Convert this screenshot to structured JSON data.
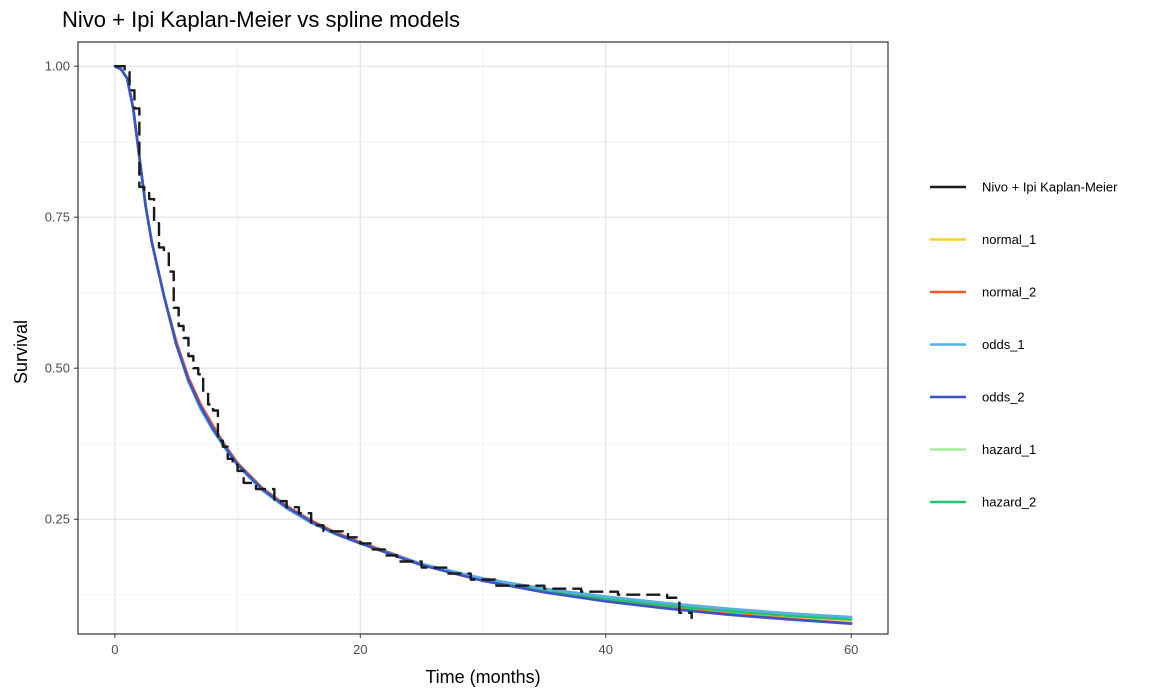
{
  "chart_data": {
    "type": "line",
    "title": "Nivo + Ipi Kaplan-Meier vs spline models",
    "xlabel": "Time (months)",
    "ylabel": "Survival",
    "xlim": [
      -3,
      63
    ],
    "ylim": [
      0.06,
      1.04
    ],
    "x_ticks": [
      0,
      20,
      40,
      60
    ],
    "x_tick_labels": [
      "0",
      "20",
      "40",
      "60"
    ],
    "y_ticks": [
      0.25,
      0.5,
      0.75,
      1.0
    ],
    "y_tick_labels": [
      "0.25",
      "0.50",
      "0.75",
      "1.00"
    ],
    "x_minor_ticks": [
      10,
      30,
      50
    ],
    "y_minor_ticks": [
      0.125,
      0.375,
      0.625,
      0.875
    ],
    "grid": true,
    "legend_position": "right",
    "series": [
      {
        "name": "Nivo + Ipi Kaplan-Meier",
        "color": "#1a1a1a",
        "dash": "long-dash",
        "x": [
          0,
          0.8,
          1.2,
          1.6,
          2.0,
          2.4,
          2.8,
          3.2,
          3.6,
          4.0,
          4.4,
          4.8,
          5.2,
          5.6,
          6.0,
          6.4,
          6.8,
          7.2,
          7.6,
          8.0,
          8.4,
          8.8,
          9.2,
          9.6,
          10.0,
          10.5,
          11.0,
          11.5,
          12.0,
          13.0,
          14.0,
          15.0,
          16.0,
          17.0,
          18.0,
          19.0,
          20.0,
          21.0,
          22.0,
          23.0,
          24.0,
          25.0,
          26.0,
          27.0,
          28.0,
          29.0,
          30.0,
          31.0,
          32.0,
          33.0,
          34.0,
          35.0,
          36.0,
          37.0,
          38.0,
          39.0,
          40.0,
          41.0,
          42.0,
          43.0,
          44.0,
          45.0,
          46.0,
          47.0
        ],
        "y": [
          1.0,
          0.99,
          0.96,
          0.93,
          0.8,
          0.79,
          0.78,
          0.74,
          0.7,
          0.69,
          0.66,
          0.6,
          0.57,
          0.55,
          0.52,
          0.5,
          0.49,
          0.46,
          0.44,
          0.43,
          0.38,
          0.37,
          0.35,
          0.34,
          0.33,
          0.31,
          0.31,
          0.3,
          0.3,
          0.28,
          0.27,
          0.26,
          0.24,
          0.23,
          0.23,
          0.22,
          0.21,
          0.2,
          0.19,
          0.18,
          0.18,
          0.17,
          0.17,
          0.16,
          0.16,
          0.15,
          0.15,
          0.14,
          0.14,
          0.14,
          0.14,
          0.135,
          0.135,
          0.135,
          0.13,
          0.13,
          0.13,
          0.125,
          0.125,
          0.125,
          0.125,
          0.12,
          0.095,
          0.085
        ]
      },
      {
        "name": "normal_1",
        "color": "#ffd21e",
        "dash": "solid",
        "x": [
          0,
          0.5,
          1,
          1.5,
          2,
          2.5,
          3,
          4,
          5,
          6,
          7,
          8,
          9,
          10,
          12,
          14,
          16,
          18,
          20,
          25,
          30,
          35,
          40,
          45,
          50,
          55,
          60
        ],
        "y": [
          1.0,
          0.995,
          0.98,
          0.93,
          0.85,
          0.77,
          0.71,
          0.62,
          0.54,
          0.48,
          0.435,
          0.4,
          0.37,
          0.34,
          0.3,
          0.27,
          0.245,
          0.225,
          0.21,
          0.175,
          0.15,
          0.132,
          0.118,
          0.106,
          0.097,
          0.089,
          0.083
        ]
      },
      {
        "name": "normal_2",
        "color": "#f05a28",
        "dash": "solid",
        "x": [
          0,
          0.5,
          1,
          1.5,
          2,
          2.5,
          3,
          4,
          5,
          6,
          7,
          8,
          9,
          10,
          12,
          14,
          16,
          18,
          20,
          25,
          30,
          35,
          40,
          45,
          50,
          55,
          60
        ],
        "y": [
          1.0,
          0.995,
          0.98,
          0.93,
          0.85,
          0.77,
          0.71,
          0.62,
          0.545,
          0.485,
          0.44,
          0.405,
          0.372,
          0.343,
          0.302,
          0.272,
          0.248,
          0.228,
          0.212,
          0.176,
          0.149,
          0.13,
          0.115,
          0.103,
          0.093,
          0.085,
          0.078
        ]
      },
      {
        "name": "odds_1",
        "color": "#5aaee6",
        "dash": "solid",
        "x": [
          0,
          0.5,
          1,
          1.5,
          2,
          2.5,
          3,
          4,
          5,
          6,
          7,
          8,
          9,
          10,
          12,
          14,
          16,
          18,
          20,
          25,
          30,
          35,
          40,
          45,
          50,
          55,
          60
        ],
        "y": [
          1.0,
          0.995,
          0.98,
          0.93,
          0.85,
          0.77,
          0.71,
          0.62,
          0.54,
          0.478,
          0.432,
          0.397,
          0.367,
          0.339,
          0.298,
          0.268,
          0.244,
          0.225,
          0.21,
          0.176,
          0.152,
          0.135,
          0.122,
          0.111,
          0.102,
          0.094,
          0.088
        ]
      },
      {
        "name": "odds_2",
        "color": "#3d52c4",
        "dash": "solid",
        "x": [
          0,
          0.5,
          1,
          1.5,
          2,
          2.5,
          3,
          4,
          5,
          6,
          7,
          8,
          9,
          10,
          12,
          14,
          16,
          18,
          20,
          25,
          30,
          35,
          40,
          45,
          50,
          55,
          60
        ],
        "y": [
          1.0,
          0.995,
          0.98,
          0.93,
          0.85,
          0.77,
          0.71,
          0.62,
          0.54,
          0.48,
          0.436,
          0.4,
          0.369,
          0.341,
          0.3,
          0.27,
          0.246,
          0.226,
          0.21,
          0.174,
          0.148,
          0.129,
          0.114,
          0.102,
          0.092,
          0.084,
          0.077
        ]
      },
      {
        "name": "hazard_1",
        "color": "#a5ee9a",
        "dash": "solid",
        "x": [
          0,
          0.5,
          1,
          1.5,
          2,
          2.5,
          3,
          4,
          5,
          6,
          7,
          8,
          9,
          10,
          12,
          14,
          16,
          18,
          20,
          25,
          30,
          35,
          40,
          45,
          50,
          55,
          60
        ],
        "y": [
          1.0,
          0.995,
          0.98,
          0.93,
          0.85,
          0.77,
          0.71,
          0.62,
          0.54,
          0.48,
          0.434,
          0.399,
          0.369,
          0.34,
          0.299,
          0.269,
          0.245,
          0.226,
          0.21,
          0.175,
          0.151,
          0.133,
          0.12,
          0.109,
          0.1,
          0.092,
          0.086
        ]
      },
      {
        "name": "hazard_2",
        "color": "#23c46c",
        "dash": "solid",
        "x": [
          0,
          0.5,
          1,
          1.5,
          2,
          2.5,
          3,
          4,
          5,
          6,
          7,
          8,
          9,
          10,
          12,
          14,
          16,
          18,
          20,
          25,
          30,
          35,
          40,
          45,
          50,
          55,
          60
        ],
        "y": [
          1.0,
          0.995,
          0.98,
          0.93,
          0.85,
          0.77,
          0.71,
          0.62,
          0.54,
          0.48,
          0.435,
          0.4,
          0.37,
          0.341,
          0.3,
          0.27,
          0.246,
          0.226,
          0.21,
          0.175,
          0.15,
          0.132,
          0.118,
          0.107,
          0.098,
          0.09,
          0.084
        ]
      }
    ]
  }
}
